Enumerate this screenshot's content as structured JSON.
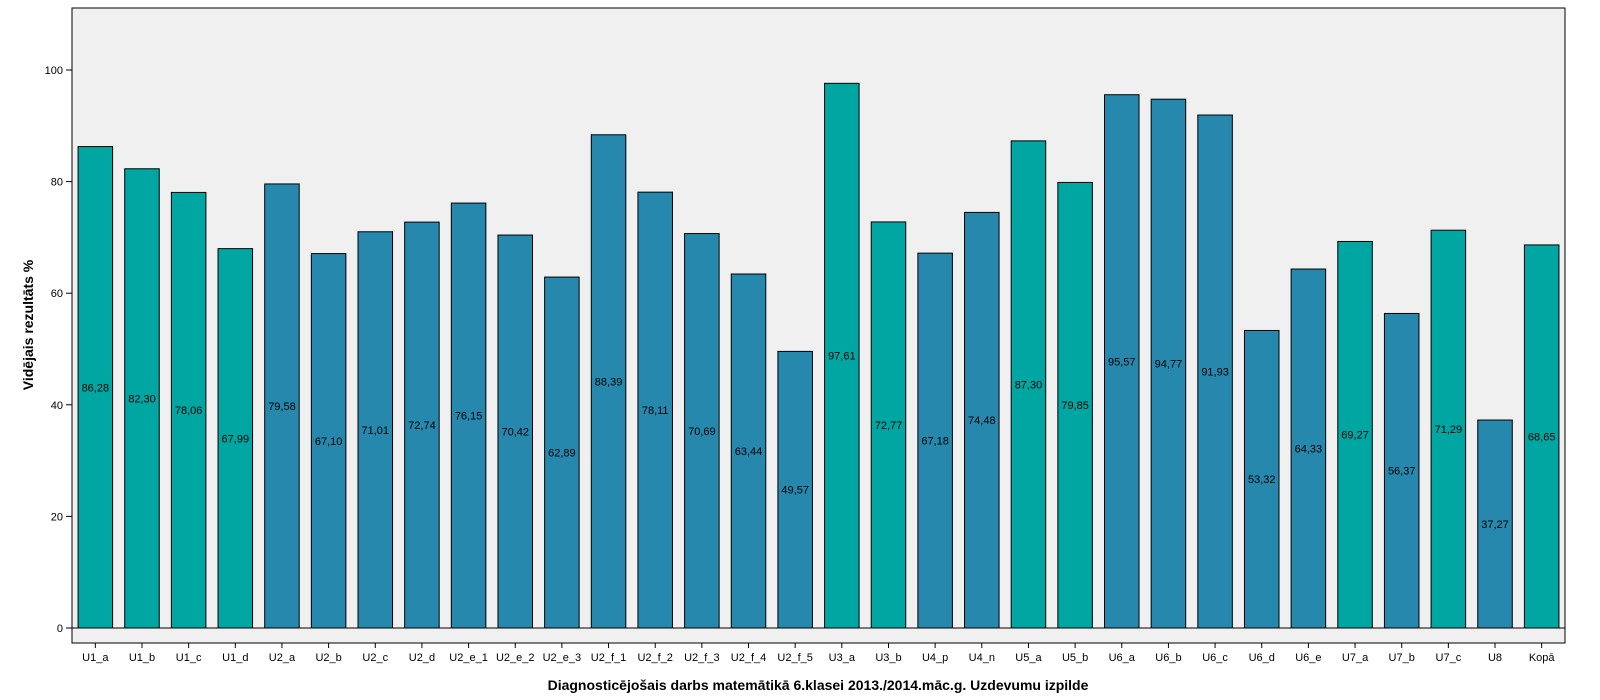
{
  "chart_data": {
    "type": "bar",
    "title": "",
    "xlabel": "Diagnosticējošais darbs matemātikā 6.klasei 2013./2014.māc.g. Uzdevumu izpilde",
    "ylabel": "Vidējais rezultāts %",
    "ylim": [
      0,
      110
    ],
    "yticks": [
      0,
      20,
      40,
      60,
      80,
      100
    ],
    "grid": false,
    "colors": {
      "teal": "#00a6a2",
      "blue": "#2688ad",
      "plot_bg": "#f0f0f0"
    },
    "categories": [
      "U1_a",
      "U1_b",
      "U1_c",
      "U1_d",
      "U2_a",
      "U2_b",
      "U2_c",
      "U2_d",
      "U2_e_1",
      "U2_e_2",
      "U2_e_3",
      "U2_f_1",
      "U2_f_2",
      "U2_f_3",
      "U2_f_4",
      "U2_f_5",
      "U3_a",
      "U3_b",
      "U4_p",
      "U4_n",
      "U5_a",
      "U5_b",
      "U6_a",
      "U6_b",
      "U6_c",
      "U6_d",
      "U6_e",
      "U7_a",
      "U7_b",
      "U7_c",
      "U8",
      "Kopā"
    ],
    "values": [
      86.28,
      82.3,
      78.06,
      67.99,
      79.58,
      67.1,
      71.01,
      72.74,
      76.15,
      70.42,
      62.89,
      88.39,
      78.11,
      70.69,
      63.44,
      49.57,
      97.61,
      72.77,
      67.18,
      74.48,
      87.3,
      79.85,
      95.57,
      94.77,
      91.93,
      53.32,
      64.33,
      69.27,
      56.37,
      71.29,
      37.27,
      68.65
    ],
    "value_labels": [
      "86,28",
      "82,30",
      "78,06",
      "67,99",
      "79,58",
      "67,10",
      "71,01",
      "72,74",
      "76,15",
      "70,42",
      "62,89",
      "88,39",
      "78,11",
      "70,69",
      "63,44",
      "49,57",
      "97,61",
      "72,77",
      "67,18",
      "74,48",
      "87,30",
      "79,85",
      "95,57",
      "94,77",
      "91,93",
      "53,32",
      "64,33",
      "69,27",
      "56,37",
      "71,29",
      "37,27",
      "68,65"
    ],
    "bar_colors": [
      "teal",
      "teal",
      "teal",
      "teal",
      "blue",
      "blue",
      "blue",
      "blue",
      "blue",
      "blue",
      "blue",
      "blue",
      "blue",
      "blue",
      "blue",
      "blue",
      "teal",
      "teal",
      "blue",
      "blue",
      "teal",
      "teal",
      "blue",
      "blue",
      "blue",
      "blue",
      "blue",
      "teal",
      "blue",
      "teal",
      "blue",
      "teal"
    ]
  }
}
